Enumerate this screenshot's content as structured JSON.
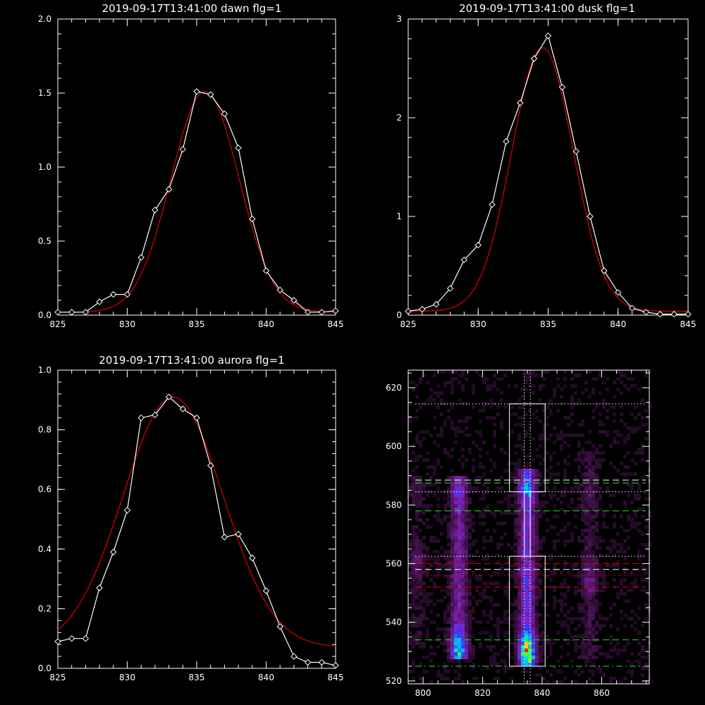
{
  "chart_data": [
    {
      "type": "line",
      "title": "2019-09-17T13:41:00 dawn flg=1",
      "xlim": [
        825,
        845
      ],
      "ylim": [
        0,
        2
      ],
      "xticks": [
        "825",
        "830",
        "835",
        "840",
        "845"
      ],
      "yticks": [
        "0.0",
        "0.5",
        "1.0",
        "1.5",
        "2.0"
      ],
      "series": [
        {
          "style": "white line with diamond markers",
          "color": "#ffffff",
          "x": [
            825,
            826,
            827,
            828,
            829,
            830,
            831,
            832,
            833,
            834,
            835,
            836,
            837,
            838,
            839,
            840,
            841,
            842,
            843,
            844,
            845
          ],
          "y": [
            0.02,
            0.02,
            0.02,
            0.09,
            0.14,
            0.14,
            0.39,
            0.71,
            0.85,
            1.12,
            1.51,
            1.49,
            1.36,
            1.13,
            0.65,
            0.3,
            0.17,
            0.1,
            0.02,
            0.02,
            0.03
          ]
        },
        {
          "style": "red gaussian fit",
          "color": "#e00000",
          "fit": "gaussian",
          "amplitude": 1.49,
          "center": 835.6,
          "sigma": 2.45,
          "offset": 0.02
        }
      ]
    },
    {
      "type": "line",
      "title": "2019-09-17T13:41:00 dusk flg=1",
      "xlim": [
        825,
        845
      ],
      "ylim": [
        0,
        3
      ],
      "xticks": [
        "825",
        "830",
        "835",
        "840",
        "845"
      ],
      "yticks": [
        "0",
        "1",
        "2",
        "3"
      ],
      "series": [
        {
          "style": "white line with diamond markers",
          "color": "#ffffff",
          "x": [
            825,
            826,
            827,
            828,
            829,
            830,
            831,
            832,
            833,
            834,
            835,
            836,
            837,
            838,
            839,
            840,
            841,
            842,
            843,
            844,
            845
          ],
          "y": [
            0.04,
            0.06,
            0.11,
            0.27,
            0.56,
            0.71,
            1.12,
            1.76,
            2.15,
            2.6,
            2.83,
            2.31,
            1.66,
            1.0,
            0.45,
            0.23,
            0.07,
            0.03,
            0.01,
            0.01,
            0.01
          ]
        },
        {
          "style": "red gaussian fit",
          "color": "#e00000",
          "fit": "gaussian",
          "amplitude": 2.67,
          "center": 834.6,
          "sigma": 2.2,
          "offset": 0.04
        }
      ]
    },
    {
      "type": "line",
      "title": "2019-09-17T13:41:00 aurora flg=1",
      "xlim": [
        825,
        845
      ],
      "ylim": [
        0,
        1
      ],
      "xticks": [
        "825",
        "830",
        "835",
        "840",
        "845"
      ],
      "yticks": [
        "0.0",
        "0.2",
        "0.4",
        "0.6",
        "0.8",
        "1.0"
      ],
      "series": [
        {
          "style": "white line with diamond markers",
          "color": "#ffffff",
          "x": [
            825,
            826,
            827,
            828,
            829,
            830,
            831,
            832,
            833,
            834,
            835,
            836,
            837,
            838,
            839,
            840,
            841,
            842,
            843,
            844,
            845
          ],
          "y": [
            0.09,
            0.1,
            0.1,
            0.27,
            0.39,
            0.53,
            0.84,
            0.85,
            0.91,
            0.87,
            0.84,
            0.68,
            0.44,
            0.45,
            0.37,
            0.26,
            0.14,
            0.04,
            0.02,
            0.02,
            0.01
          ]
        },
        {
          "style": "red gaussian fit",
          "color": "#e00000",
          "fit": "gaussian",
          "amplitude": 0.84,
          "center": 833.3,
          "sigma": 3.6,
          "offset": 0.07
        }
      ]
    },
    {
      "type": "heatmap",
      "title": "",
      "xlim": [
        795,
        876
      ],
      "ylim": [
        519,
        626
      ],
      "xticks": [
        "800",
        "820",
        "840",
        "860"
      ],
      "yticks": [
        "520",
        "540",
        "560",
        "580",
        "600",
        "620"
      ],
      "colormap": [
        "#000000",
        "#3a1040",
        "#6a1a8a",
        "#7a2ad0",
        "#2a3cff",
        "#00b4ff",
        "#00e8c8",
        "#30ff40",
        "#ffd000",
        "#ff2000"
      ],
      "emission_columns": [
        {
          "x_center": 812,
          "from": 527,
          "to": 590,
          "peak": 0.7,
          "peak_y": 531
        },
        {
          "x_center": 835,
          "from": 525,
          "to": 592,
          "peak": 1.0,
          "peak_y": 530
        },
        {
          "x_center": 856,
          "from": 527,
          "to": 598,
          "peak": 0.22,
          "peak_y": 555
        },
        {
          "x_center": 798,
          "from": 530,
          "to": 590,
          "peak": 0.15,
          "peak_y": 560
        }
      ],
      "boxes": [
        {
          "x0": 829,
          "x1": 841,
          "y0": 584.5,
          "y1": 614.5,
          "color": "#ffffff"
        },
        {
          "x0": 829,
          "x1": 841,
          "y0": 525,
          "y1": 562.5,
          "color": "#ffffff"
        },
        {
          "x0": 834,
          "x1": 836,
          "y0": 562.5,
          "y1": 584.5,
          "color": "#ffffff"
        }
      ],
      "hlines": [
        {
          "y": 614.5,
          "color": "#ffffff",
          "dash": "dotted"
        },
        {
          "y": 588.5,
          "color": "#ffffff",
          "dash": "dashed"
        },
        {
          "y": 587.5,
          "color": "#20e020",
          "dash": "dashed"
        },
        {
          "y": 584.5,
          "color": "#ffffff",
          "dash": "dotted"
        },
        {
          "y": 578,
          "color": "#20e020",
          "dash": "dashed"
        },
        {
          "y": 562.5,
          "color": "#ffffff",
          "dash": "dotted"
        },
        {
          "y": 560,
          "color": "#e00000",
          "dash": "dashed"
        },
        {
          "y": 558,
          "color": "#ffffff",
          "dash": "dashed"
        },
        {
          "y": 556,
          "color": "#e00000",
          "dash": "dotted"
        },
        {
          "y": 552,
          "color": "#e00000",
          "dash": "dashed"
        },
        {
          "y": 534,
          "color": "#20e020",
          "dash": "dashed"
        },
        {
          "y": 525,
          "color": "#20e020",
          "dash": "dashdot"
        }
      ],
      "vlines": [
        {
          "x": 834,
          "color": "#ffffff",
          "dash": "dotted"
        },
        {
          "x": 836,
          "color": "#ffffff",
          "dash": "dotted"
        }
      ]
    }
  ]
}
